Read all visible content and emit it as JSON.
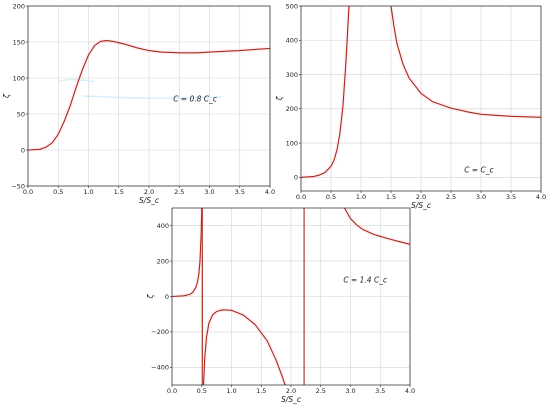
{
  "chart_data": [
    {
      "type": "line",
      "panel": "top-left",
      "annotation": "C = 0.8 C_c",
      "ylabel": "ζ",
      "xlabel": "S/S_c",
      "xlim": [
        0.0,
        4.0
      ],
      "ylim": [
        -50,
        200
      ],
      "xticks": [
        "0.0",
        "0.5",
        "1.0",
        "1.5",
        "2.0",
        "2.5",
        "3.0",
        "3.5",
        "4.0"
      ],
      "yticks": [
        "−50",
        "0",
        "50",
        "100",
        "150",
        "200"
      ],
      "grid": true,
      "annotation_position": "right-middle",
      "series": [
        {
          "x": [
            0,
            0.2,
            0.3,
            0.4,
            0.5,
            0.6,
            0.7,
            0.8,
            0.9,
            1.0,
            1.1,
            1.2,
            1.3,
            1.4,
            1.6,
            1.8,
            2.0,
            2.2,
            2.5,
            2.8,
            3.0,
            3.2,
            3.5,
            3.8,
            4.0
          ],
          "y": [
            0,
            1,
            4,
            10,
            22,
            40,
            62,
            88,
            112,
            132,
            145,
            151,
            152,
            151,
            147,
            142,
            138,
            136,
            135,
            135,
            136,
            137,
            138,
            140,
            141
          ]
        }
      ]
    },
    {
      "type": "line",
      "panel": "top-right",
      "annotation": "C = C_c",
      "ylabel": "ζ",
      "xlabel": "S/S_c",
      "xlim": [
        0.0,
        4.0
      ],
      "ylim": [
        -40,
        500
      ],
      "xticks": [
        "0.0",
        "0.5",
        "1.0",
        "1.5",
        "2.0",
        "2.5",
        "3.0",
        "3.5",
        "4.0"
      ],
      "yticks": [
        "0",
        "100",
        "200",
        "300",
        "400",
        "500"
      ],
      "grid": true,
      "annotation_position": "bottom-right",
      "series": [
        {
          "x": [
            0,
            0.2,
            0.3,
            0.4,
            0.5,
            0.55,
            0.6,
            0.65,
            0.7,
            0.75,
            0.8
          ],
          "y": [
            0,
            2,
            6,
            14,
            32,
            50,
            80,
            130,
            210,
            340,
            500
          ]
        },
        {
          "x": [
            1.5,
            1.55,
            1.6,
            1.7,
            1.8,
            2.0,
            2.2,
            2.5,
            2.8,
            3.0,
            3.5,
            4.0
          ],
          "y": [
            500,
            440,
            390,
            330,
            290,
            245,
            220,
            202,
            190,
            184,
            178,
            175
          ]
        }
      ]
    },
    {
      "type": "line",
      "panel": "bottom",
      "annotation": "C = 1.4 C_c",
      "ylabel": "ζ",
      "xlabel": "S/S_c",
      "xlim": [
        0.0,
        4.0
      ],
      "ylim": [
        -500,
        500
      ],
      "xticks": [
        "0.0",
        "0.5",
        "1.0",
        "1.5",
        "2.0",
        "2.5",
        "3.0",
        "3.5",
        "4.0"
      ],
      "yticks": [
        "−400",
        "−200",
        "0",
        "200",
        "400"
      ],
      "grid": true,
      "annotation_position": "right-upper",
      "asymptotes_x": [
        0.51,
        2.22
      ],
      "series": [
        {
          "x": [
            0,
            0.2,
            0.3,
            0.35,
            0.4,
            0.43,
            0.45,
            0.47,
            0.49,
            0.5
          ],
          "y": [
            0,
            4,
            12,
            24,
            50,
            85,
            125,
            200,
            360,
            500
          ]
        },
        {
          "x": [
            0.53,
            0.55,
            0.58,
            0.62,
            0.68,
            0.75,
            0.85,
            1.0,
            1.2,
            1.4,
            1.6,
            1.75,
            1.85,
            1.9
          ],
          "y": [
            -500,
            -350,
            -230,
            -150,
            -105,
            -85,
            -75,
            -78,
            -105,
            -160,
            -250,
            -360,
            -450,
            -500
          ]
        },
        {
          "x": [
            2.9,
            3.0,
            3.1,
            3.2,
            3.4,
            3.6,
            3.8,
            4.0
          ],
          "y": [
            500,
            440,
            405,
            380,
            350,
            330,
            312,
            295
          ]
        }
      ]
    }
  ],
  "ghost_marks": [
    {
      "panel": 0,
      "x": [
        0.5,
        0.6,
        0.7,
        0.9,
        1.1
      ],
      "y": [
        95,
        97,
        98,
        97,
        95
      ]
    },
    {
      "panel": 0,
      "x": [
        0.9,
        1.2,
        1.5,
        2.0,
        2.5,
        3.0,
        3.2
      ],
      "y": [
        75,
        74,
        73,
        72,
        72,
        73,
        74
      ]
    }
  ]
}
